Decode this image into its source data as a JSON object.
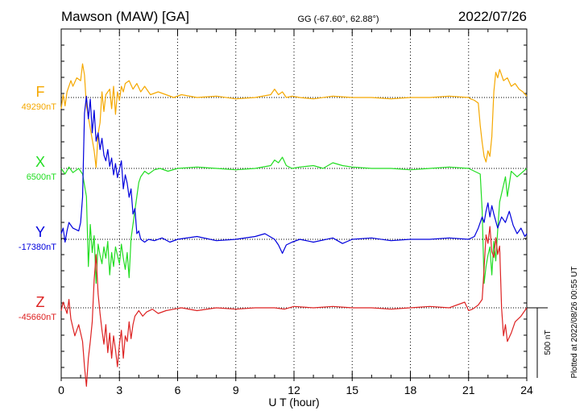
{
  "header": {
    "station": "Mawson (MAW)  [GA]",
    "coords": "GG (-67.60°,  62.88°)",
    "date": "2022/07/26"
  },
  "footer": {
    "plotted": "Plotted at 2022/08/26 00:55 UT"
  },
  "chart_data": {
    "type": "line",
    "title": "Mawson (MAW)  [GA]",
    "xlabel": "U T (hour)",
    "ylabel": "",
    "xlim": [
      0,
      24
    ],
    "xticks": [
      "0",
      "3",
      "6",
      "9",
      "12",
      "15",
      "18",
      "21",
      "24"
    ],
    "grid": true,
    "scale_bar": {
      "label": "500 nT",
      "value": 500
    },
    "series": [
      {
        "name": "F",
        "baseline_label": "49290nT",
        "baseline": 49290,
        "color": "#f5a800",
        "x": [
          0,
          0.1,
          0.2,
          0.3,
          0.5,
          0.6,
          0.8,
          1.0,
          1.1,
          1.2,
          1.3,
          1.4,
          1.5,
          1.6,
          1.7,
          1.8,
          1.9,
          2.0,
          2.1,
          2.2,
          2.3,
          2.5,
          2.6,
          2.7,
          2.8,
          2.9,
          3.0,
          3.1,
          3.2,
          3.3,
          3.5,
          3.7,
          3.9,
          4.1,
          4.3,
          4.6,
          5.0,
          5.4,
          5.8,
          6.2,
          7.0,
          8.0,
          9.0,
          10.0,
          10.8,
          11.0,
          11.2,
          11.4,
          11.6,
          11.9,
          12.3,
          13.0,
          14.0,
          15.0,
          16.0,
          17.0,
          18.0,
          19.0,
          20.0,
          21.0,
          21.1,
          21.3,
          21.5,
          21.6,
          21.7,
          21.8,
          21.9,
          22.0,
          22.1,
          22.2,
          22.3,
          22.4,
          22.5,
          22.6,
          22.8,
          23.0,
          23.2,
          23.4,
          23.6,
          23.8,
          24.0
        ],
        "y": [
          -80,
          20,
          -60,
          40,
          120,
          80,
          140,
          120,
          240,
          160,
          -60,
          -140,
          -220,
          -300,
          -380,
          -500,
          -260,
          -180,
          40,
          -100,
          20,
          60,
          -80,
          80,
          -120,
          40,
          -20,
          80,
          40,
          100,
          120,
          60,
          100,
          40,
          80,
          20,
          40,
          20,
          0,
          20,
          0,
          10,
          -10,
          0,
          20,
          60,
          20,
          40,
          0,
          10,
          0,
          -10,
          10,
          0,
          0,
          -10,
          0,
          0,
          10,
          0,
          -10,
          -20,
          -40,
          -200,
          -320,
          -420,
          -460,
          -380,
          -420,
          -280,
          40,
          180,
          140,
          200,
          120,
          140,
          80,
          100,
          60,
          40,
          10
        ]
      },
      {
        "name": "X",
        "baseline_label": "6500nT",
        "baseline": 6500,
        "color": "#22dd22",
        "x": [
          0,
          0.2,
          0.4,
          0.6,
          0.9,
          1.1,
          1.3,
          1.4,
          1.5,
          1.6,
          1.7,
          1.8,
          1.9,
          2.0,
          2.1,
          2.2,
          2.3,
          2.4,
          2.5,
          2.6,
          2.7,
          2.8,
          2.9,
          3.0,
          3.1,
          3.2,
          3.3,
          3.4,
          3.5,
          3.6,
          3.7,
          3.8,
          3.9,
          4.0,
          4.1,
          4.3,
          4.5,
          4.8,
          5.1,
          5.5,
          6.0,
          7.0,
          8.0,
          9.0,
          10.0,
          10.8,
          11.0,
          11.2,
          11.4,
          11.6,
          11.9,
          12.3,
          13.0,
          13.5,
          14.0,
          14.5,
          15.0,
          16.0,
          17.0,
          18.0,
          19.0,
          20.0,
          21.0,
          21.3,
          21.6,
          21.7,
          21.8,
          21.9,
          22.0,
          22.1,
          22.2,
          22.3,
          22.4,
          22.5,
          22.6,
          22.7,
          22.8,
          22.9,
          23.0,
          23.2,
          23.5,
          24.0
        ],
        "y": [
          0,
          -40,
          10,
          -30,
          0,
          -40,
          -200,
          -700,
          -400,
          -600,
          -480,
          -820,
          -540,
          -620,
          -680,
          -560,
          -640,
          -520,
          -760,
          -600,
          -700,
          -560,
          -620,
          -680,
          -540,
          -640,
          -720,
          -600,
          -780,
          -500,
          -400,
          -300,
          -200,
          -100,
          -60,
          -20,
          -40,
          -10,
          0,
          -20,
          0,
          10,
          0,
          -10,
          0,
          20,
          60,
          40,
          80,
          20,
          0,
          10,
          20,
          0,
          40,
          20,
          10,
          0,
          0,
          -10,
          0,
          10,
          0,
          -20,
          -40,
          -300,
          -820,
          -700,
          -620,
          -560,
          -760,
          -520,
          -660,
          -440,
          -240,
          -180,
          -120,
          -60,
          -200,
          -20,
          -60,
          0
        ]
      },
      {
        "name": "Y",
        "baseline_label": "-17380nT",
        "baseline": -17380,
        "color": "#0000dd",
        "x": [
          0,
          0.1,
          0.2,
          0.3,
          0.4,
          0.6,
          0.9,
          1.0,
          1.1,
          1.2,
          1.3,
          1.4,
          1.5,
          1.6,
          1.7,
          1.8,
          1.9,
          2.0,
          2.1,
          2.2,
          2.3,
          2.4,
          2.5,
          2.6,
          2.7,
          2.8,
          2.9,
          3.0,
          3.1,
          3.2,
          3.3,
          3.4,
          3.5,
          3.6,
          3.7,
          3.8,
          3.9,
          4.0,
          4.1,
          4.3,
          4.5,
          4.8,
          5.2,
          5.6,
          6.0,
          7.0,
          8.0,
          9.0,
          10.0,
          10.5,
          11.0,
          11.2,
          11.4,
          11.6,
          11.9,
          12.3,
          13.0,
          14.0,
          14.5,
          15.0,
          16.0,
          17.0,
          18.0,
          19.0,
          20.0,
          21.0,
          21.3,
          21.5,
          21.7,
          21.8,
          21.9,
          22.0,
          22.1,
          22.2,
          22.3,
          22.5,
          22.7,
          22.9,
          23.1,
          23.3,
          23.5,
          23.7,
          23.9,
          24.0
        ],
        "y": [
          40,
          80,
          -20,
          60,
          120,
          80,
          60,
          120,
          300,
          900,
          1020,
          860,
          1000,
          760,
          920,
          700,
          760,
          640,
          720,
          600,
          560,
          640,
          520,
          580,
          460,
          540,
          440,
          500,
          560,
          360,
          460,
          400,
          300,
          360,
          180,
          220,
          40,
          60,
          0,
          -20,
          0,
          -10,
          10,
          -20,
          0,
          20,
          -10,
          0,
          20,
          40,
          0,
          -40,
          -100,
          -40,
          -20,
          0,
          -20,
          10,
          -30,
          0,
          10,
          -10,
          0,
          0,
          10,
          0,
          20,
          80,
          160,
          120,
          200,
          260,
          160,
          240,
          180,
          80,
          160,
          120,
          200,
          100,
          40,
          80,
          20,
          40
        ]
      },
      {
        "name": "Z",
        "baseline_label": "-45660nT",
        "baseline": -45660,
        "color": "#dd2222",
        "x": [
          0,
          0.1,
          0.2,
          0.3,
          0.4,
          0.5,
          0.7,
          0.9,
          1.0,
          1.1,
          1.2,
          1.3,
          1.4,
          1.5,
          1.6,
          1.7,
          1.8,
          1.9,
          2.0,
          2.1,
          2.2,
          2.3,
          2.4,
          2.5,
          2.6,
          2.7,
          2.8,
          2.9,
          3.0,
          3.1,
          3.2,
          3.3,
          3.4,
          3.5,
          3.6,
          3.7,
          3.8,
          3.9,
          4.0,
          4.2,
          4.4,
          4.7,
          5.0,
          5.4,
          5.8,
          6.2,
          7.0,
          8.0,
          9.0,
          10.0,
          11.0,
          11.5,
          12.0,
          13.0,
          14.0,
          15.0,
          16.0,
          17.0,
          18.0,
          19.0,
          20.0,
          20.8,
          21.0,
          21.2,
          21.5,
          21.7,
          21.8,
          21.9,
          22.0,
          22.1,
          22.2,
          22.3,
          22.4,
          22.5,
          22.6,
          22.7,
          22.8,
          22.9,
          23.0,
          23.2,
          23.4,
          23.7,
          24.0
        ],
        "y": [
          -20,
          40,
          0,
          -40,
          60,
          -80,
          -200,
          -120,
          -180,
          -240,
          -420,
          -560,
          -360,
          -240,
          -100,
          200,
          380,
          100,
          -40,
          -160,
          -260,
          -120,
          -320,
          -180,
          -360,
          -200,
          -300,
          -420,
          -260,
          -160,
          -360,
          -200,
          -240,
          -100,
          -220,
          -120,
          -60,
          -40,
          -20,
          -60,
          -30,
          -10,
          -40,
          -20,
          -10,
          0,
          -20,
          0,
          -10,
          0,
          0,
          -10,
          10,
          0,
          10,
          0,
          0,
          -10,
          0,
          10,
          0,
          40,
          -20,
          -10,
          20,
          60,
          280,
          520,
          460,
          580,
          400,
          360,
          500,
          380,
          440,
          0,
          -200,
          -120,
          -240,
          -180,
          -100,
          -60,
          0
        ]
      }
    ]
  }
}
